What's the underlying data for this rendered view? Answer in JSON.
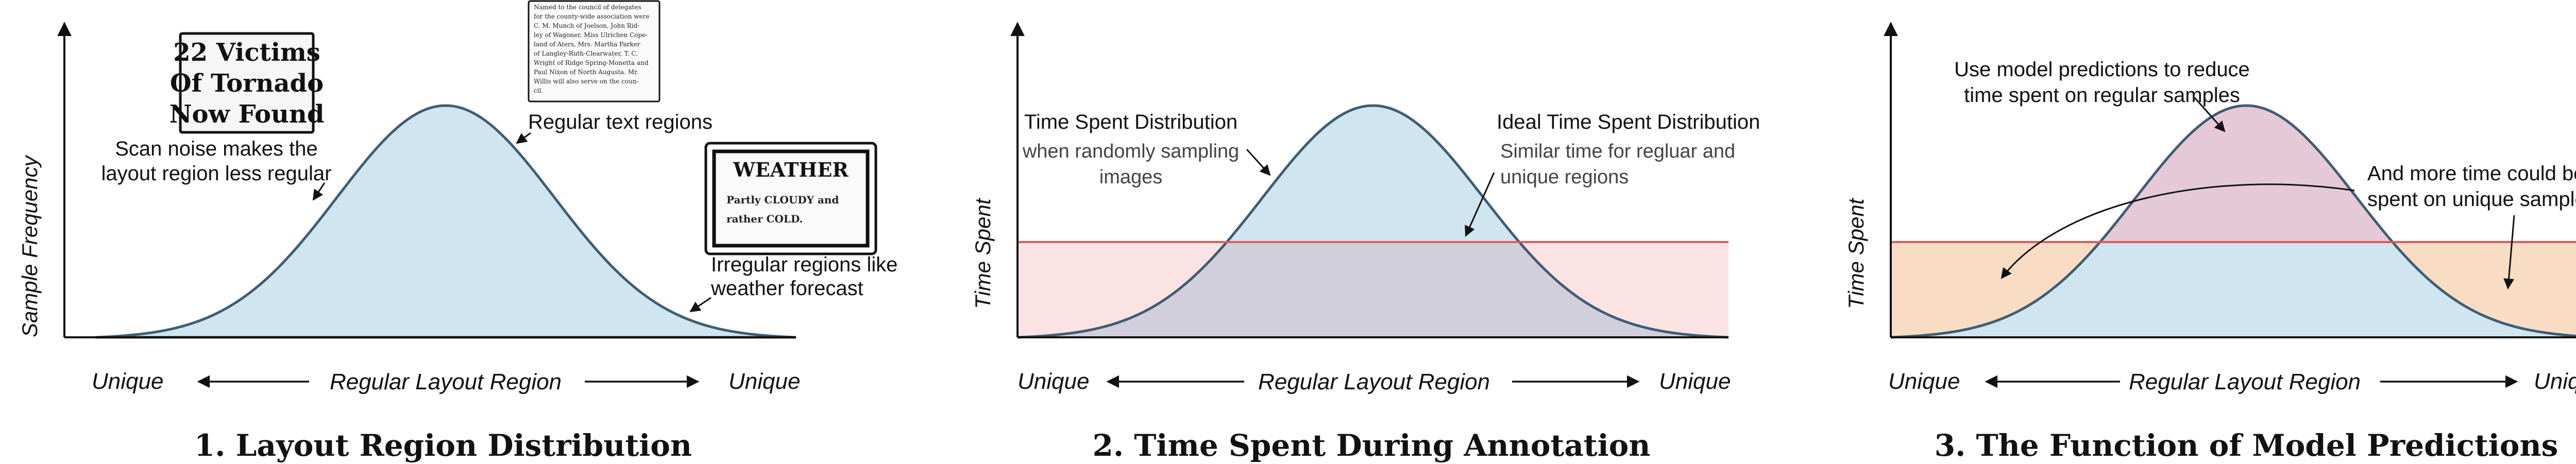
{
  "panels": [
    {
      "title": "1. Layout Region Distribution",
      "y_axis_label": "Sample Frequency",
      "x_left": "Unique",
      "x_center": "Regular Layout Region",
      "x_right": "Unique",
      "annotations": {
        "scan_noise": [
          "Scan noise makes the",
          "layout region less regular"
        ],
        "regular_text": "Regular text regions",
        "irregular": [
          "Irregular regions like",
          "weather forecast"
        ]
      },
      "clippings": {
        "headline": [
          "22 Victims",
          "Of Tornado",
          "Now Found"
        ],
        "article": [
          "Named to the council of delegates",
          "for the county-wide association were",
          "C. M. Munch of Joelson, John Rid-",
          "ley of Wagoner, Miss Ulrichen Cope-",
          "land of Aters, Mrs. Martha Parker",
          "of Langley-Ruth-Clearwater, T. C.",
          "Wright of Ridge Spring-Monetta and",
          "Paul Nixon of North Augusta. Mr.",
          "Willis will also serve on the coun-",
          "cil."
        ],
        "weather_title": "WEATHER",
        "weather_body": [
          "Partly CLOUDY and",
          "rather COLD."
        ]
      }
    },
    {
      "title": "2. Time Spent During Annotation",
      "y_axis_label": "Time Spent",
      "x_left": "Unique",
      "x_center": "Regular Layout Region",
      "x_right": "Unique",
      "annotations": {
        "dist_title": "Time Spent Distribution",
        "dist_sub": [
          "when randomly sampling",
          "images"
        ],
        "ideal_title": "Ideal Time Spent Distribution",
        "ideal_sub": [
          "Similar time for regluar and",
          "unique regions"
        ]
      }
    },
    {
      "title": "3. The Function of Model Predictions",
      "y_axis_label": "Time Spent",
      "x_left": "Unique",
      "x_center": "Regular Layout Region",
      "x_right": "Unique",
      "annotations": {
        "reduce": [
          "Use model predictions to reduce",
          "time spent on regular samples"
        ],
        "more": [
          "And more time could be",
          "spent on unique samples"
        ]
      }
    }
  ],
  "colors": {
    "curve_fill": "#cfe5ef",
    "curve_stroke": "#3f5d73",
    "ideal_line": "#e05a5a",
    "ideal_fill": "#fbe3e3",
    "overlap_fill": "#d2cfdc",
    "reduce_fill": "#e6c9d6",
    "gain_fill": "#f8dcc4"
  }
}
